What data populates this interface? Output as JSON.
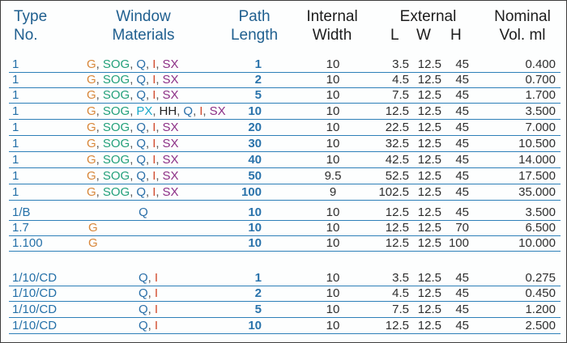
{
  "header": {
    "type_1": "Type",
    "type_2": "No.",
    "window_1": "Window",
    "window_2": "Materials",
    "path_1": "Path",
    "path_2": "Length",
    "internal_1": "Internal",
    "internal_2": "Width",
    "external_1": "External",
    "ext_l": "L",
    "ext_w": "W",
    "ext_h": "H",
    "nominal_1": "Nominal",
    "nominal_2": "Vol. ml"
  },
  "material_colors": {
    "G": "#d8873a",
    "SOG": "#22a07a",
    "Q": "#2a6fa8",
    "I": "#d14a2c",
    "SX": "#8c2f86",
    "PX": "#1aa8c8",
    "HH": "#222222",
    "sep": "#555555"
  },
  "rows": [
    {
      "type": "1",
      "materials": [
        [
          "G",
          "G"
        ],
        [
          ",",
          ""
        ],
        [
          "SOG",
          "SOG"
        ],
        [
          ",",
          ""
        ],
        [
          "Q",
          "Q"
        ],
        [
          ",",
          ""
        ],
        [
          "I",
          "I"
        ],
        [
          ",",
          ""
        ],
        [
          "SX",
          "SX"
        ]
      ],
      "path": "1",
      "internal": "10",
      "L": "3.5",
      "W": "12.5",
      "H": "45",
      "vol": "0.400"
    },
    {
      "type": "1",
      "materials": [
        [
          "G",
          "G"
        ],
        [
          ",",
          ""
        ],
        [
          "SOG",
          "SOG"
        ],
        [
          ",",
          ""
        ],
        [
          "Q",
          "Q"
        ],
        [
          ",",
          ""
        ],
        [
          "I",
          "I"
        ],
        [
          ",",
          ""
        ],
        [
          "SX",
          "SX"
        ]
      ],
      "path": "2",
      "internal": "10",
      "L": "4.5",
      "W": "12.5",
      "H": "45",
      "vol": "0.700"
    },
    {
      "type": "1",
      "materials": [
        [
          "G",
          "G"
        ],
        [
          ",",
          ""
        ],
        [
          "SOG",
          "SOG"
        ],
        [
          ",",
          ""
        ],
        [
          "Q",
          "Q"
        ],
        [
          ",",
          ""
        ],
        [
          "I",
          "I"
        ],
        [
          ",",
          ""
        ],
        [
          "SX",
          "SX"
        ]
      ],
      "path": "5",
      "internal": "10",
      "L": "7.5",
      "W": "12.5",
      "H": "45",
      "vol": "1.700"
    },
    {
      "type": "1",
      "materials": [
        [
          "G",
          "G"
        ],
        [
          ",",
          ""
        ],
        [
          "SOG",
          "SOG"
        ],
        [
          ",",
          ""
        ],
        [
          "PX",
          "PX"
        ],
        [
          ",",
          ""
        ],
        [
          "HH",
          "HH"
        ],
        [
          ",",
          ""
        ],
        [
          "Q",
          "Q"
        ],
        [
          ",",
          ""
        ],
        [
          "I",
          "I"
        ],
        [
          ",",
          ""
        ],
        [
          "SX",
          "SX"
        ]
      ],
      "path": "10",
      "internal": "10",
      "L": "12.5",
      "W": "12.5",
      "H": "45",
      "vol": "3.500"
    },
    {
      "type": "1",
      "materials": [
        [
          "G",
          "G"
        ],
        [
          ",",
          ""
        ],
        [
          "SOG",
          "SOG"
        ],
        [
          ",",
          ""
        ],
        [
          "Q",
          "Q"
        ],
        [
          ",",
          ""
        ],
        [
          "I",
          "I"
        ],
        [
          ",",
          ""
        ],
        [
          "SX",
          "SX"
        ]
      ],
      "path": "20",
      "internal": "10",
      "L": "22.5",
      "W": "12.5",
      "H": "45",
      "vol": "7.000"
    },
    {
      "type": "1",
      "materials": [
        [
          "G",
          "G"
        ],
        [
          ",",
          ""
        ],
        [
          "SOG",
          "SOG"
        ],
        [
          ",",
          ""
        ],
        [
          "Q",
          "Q"
        ],
        [
          ",",
          ""
        ],
        [
          "I",
          "I"
        ],
        [
          ",",
          ""
        ],
        [
          "SX",
          "SX"
        ]
      ],
      "path": "30",
      "internal": "10",
      "L": "32.5",
      "W": "12.5",
      "H": "45",
      "vol": "10.500"
    },
    {
      "type": "1",
      "materials": [
        [
          "G",
          "G"
        ],
        [
          ",",
          ""
        ],
        [
          "SOG",
          "SOG"
        ],
        [
          ",",
          ""
        ],
        [
          "Q",
          "Q"
        ],
        [
          ",",
          ""
        ],
        [
          "I",
          "I"
        ],
        [
          ",",
          ""
        ],
        [
          "SX",
          "SX"
        ]
      ],
      "path": "40",
      "internal": "10",
      "L": "42.5",
      "W": "12.5",
      "H": "45",
      "vol": "14.000"
    },
    {
      "type": "1",
      "materials": [
        [
          "G",
          "G"
        ],
        [
          ",",
          ""
        ],
        [
          "SOG",
          "SOG"
        ],
        [
          ",",
          ""
        ],
        [
          "Q",
          "Q"
        ],
        [
          ",",
          ""
        ],
        [
          "I",
          "I"
        ],
        [
          ",",
          ""
        ],
        [
          "SX",
          "SX"
        ]
      ],
      "path": "50",
      "internal": "9.5",
      "L": "52.5",
      "W": "12.5",
      "H": "45",
      "vol": "17.500"
    },
    {
      "type": "1",
      "materials": [
        [
          "G",
          "G"
        ],
        [
          ",",
          ""
        ],
        [
          "SOG",
          "SOG"
        ],
        [
          ",",
          ""
        ],
        [
          "Q",
          "Q"
        ],
        [
          ",",
          ""
        ],
        [
          "I",
          "I"
        ],
        [
          ",",
          ""
        ],
        [
          "SX",
          "SX"
        ]
      ],
      "path": "100",
      "internal": "9",
      "L": "102.5",
      "W": "12.5",
      "H": "45",
      "vol": "35.000"
    },
    {
      "type": "1/B",
      "materials": [
        [
          "Q",
          "Q"
        ]
      ],
      "path": "10",
      "internal": "10",
      "L": "12.5",
      "W": "12.5",
      "H": "45",
      "vol": "3.500"
    },
    {
      "type": "1.7",
      "materials": [
        [
          "G",
          "G"
        ]
      ],
      "path": "10",
      "internal": "10",
      "L": "12.5",
      "W": "12.5",
      "H": "70",
      "vol": "6.500"
    },
    {
      "type": "1.100",
      "materials": [
        [
          "G",
          "G"
        ]
      ],
      "path": "10",
      "internal": "10",
      "L": "12.5",
      "W": "12.5",
      "H": "100",
      "vol": "10.000"
    },
    {
      "type": "1/10/CD",
      "materials": [
        [
          "Q",
          "Q"
        ],
        [
          ",",
          ""
        ],
        [
          "I",
          "I"
        ]
      ],
      "path": "1",
      "internal": "10",
      "L": "3.5",
      "W": "12.5",
      "H": "45",
      "vol": "0.275"
    },
    {
      "type": "1/10/CD",
      "materials": [
        [
          "Q",
          "Q"
        ],
        [
          ",",
          ""
        ],
        [
          "I",
          "I"
        ]
      ],
      "path": "2",
      "internal": "10",
      "L": "4.5",
      "W": "12.5",
      "H": "45",
      "vol": "0.450"
    },
    {
      "type": "1/10/CD",
      "materials": [
        [
          "Q",
          "Q"
        ],
        [
          ",",
          ""
        ],
        [
          "I",
          "I"
        ]
      ],
      "path": "5",
      "internal": "10",
      "L": "7.5",
      "W": "12.5",
      "H": "45",
      "vol": "1.200"
    },
    {
      "type": "1/10/CD",
      "materials": [
        [
          "Q",
          "Q"
        ],
        [
          ",",
          ""
        ],
        [
          "I",
          "I"
        ]
      ],
      "path": "10",
      "internal": "10",
      "L": "12.5",
      "W": "12.5",
      "H": "45",
      "vol": "2.500"
    }
  ]
}
